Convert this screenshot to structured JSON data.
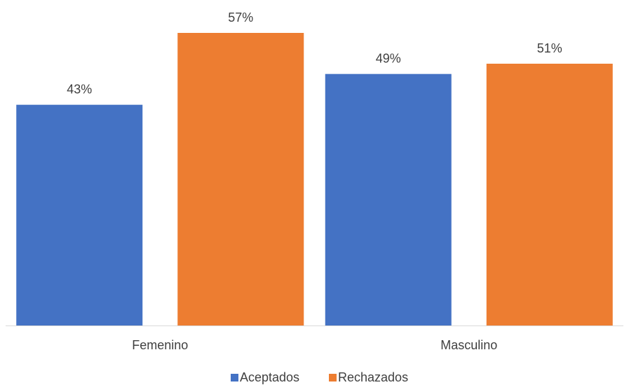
{
  "chart_data": {
    "type": "bar",
    "categories": [
      "Femenino",
      "Masculino"
    ],
    "series": [
      {
        "name": "Aceptados",
        "values": [
          43,
          49
        ],
        "labels": [
          "43%",
          "49%"
        ],
        "color": "#4472C4"
      },
      {
        "name": "Rechazados",
        "values": [
          57,
          51
        ],
        "labels": [
          "57%",
          "51%"
        ],
        "color": "#ED7D31"
      }
    ],
    "title": "",
    "xlabel": "",
    "ylabel": "",
    "ylim": [
      0,
      60
    ],
    "grid": false,
    "legend": "bottom",
    "axis_color": "#D9D9D9"
  }
}
